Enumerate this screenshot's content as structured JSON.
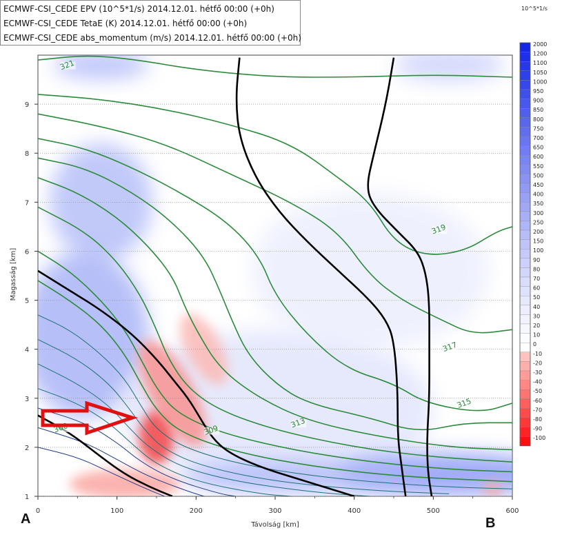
{
  "header": {
    "legend": [
      "ECMWF-CSI_CEDE EPV (10^5*1/s) 2014.12.01. hétfő 00:00 (+0h)",
      "ECMWF-CSI_CEDE TetaE (K) 2014.12.01. hétfő 00:00 (+0h)",
      "ECMWF-CSI_CEDE abs_momentum (m/s) 2014.12.01. hétfő 00:00 (+0h)"
    ],
    "unit": "10^5*1/s"
  },
  "corners": {
    "left": "A",
    "right": "B"
  },
  "colors": {
    "theta_e": "#2a8a3a",
    "momentum": "#000000",
    "arrow": "#e01010",
    "positive": "#3a55e8",
    "negative": "#f03020"
  },
  "chart_data": {
    "type": "heatmap",
    "xlabel": "Távolság [km]",
    "ylabel": "Magasság [km]",
    "xlim": [
      0,
      600
    ],
    "ylim": [
      1,
      10
    ],
    "xticks": [
      "0",
      "100",
      "200",
      "300",
      "400",
      "500",
      "600"
    ],
    "yticks": [
      "1",
      "2",
      "3",
      "4",
      "5",
      "6",
      "7",
      "8",
      "9"
    ],
    "grid": true,
    "colorbar": {
      "labels": [
        "2000",
        "1200",
        "1100",
        "1050",
        "1000",
        "950",
        "900",
        "850",
        "800",
        "750",
        "700",
        "650",
        "600",
        "550",
        "500",
        "450",
        "400",
        "350",
        "300",
        "250",
        "200",
        "150",
        "100",
        "90",
        "80",
        "70",
        "60",
        "50",
        "40",
        "30",
        "20",
        "10",
        "0",
        "-10",
        "-20",
        "-30",
        "-40",
        "-50",
        "-60",
        "-70",
        "-80",
        "-90",
        "-100"
      ]
    },
    "theta_e_labels": [
      {
        "text": "321",
        "x": 38,
        "y": 9.75
      },
      {
        "text": "319",
        "x": 508,
        "y": 6.4
      },
      {
        "text": "317",
        "x": 522,
        "y": 4.0
      },
      {
        "text": "315",
        "x": 540,
        "y": 2.85
      },
      {
        "text": "313",
        "x": 330,
        "y": 2.45
      },
      {
        "text": "309",
        "x": 220,
        "y": 2.3
      },
      {
        "text": "300",
        "x": 30,
        "y": 2.35
      }
    ],
    "theta_e_contours": [
      [
        [
          0,
          9.9
        ],
        [
          60,
          10
        ],
        [
          120,
          9.92
        ],
        [
          200,
          9.7
        ],
        [
          300,
          9.55
        ],
        [
          400,
          9.55
        ],
        [
          500,
          9.6
        ],
        [
          600,
          9.55
        ]
      ],
      [
        [
          0,
          9.2
        ],
        [
          80,
          9.1
        ],
        [
          160,
          8.9
        ],
        [
          240,
          8.6
        ],
        [
          320,
          8.2
        ],
        [
          380,
          7.5
        ],
        [
          420,
          7.0
        ],
        [
          450,
          6.2
        ],
        [
          490,
          5.9
        ],
        [
          540,
          6.0
        ],
        [
          580,
          6.4
        ],
        [
          600,
          6.5
        ]
      ],
      [
        [
          0,
          8.8
        ],
        [
          80,
          8.55
        ],
        [
          160,
          8.2
        ],
        [
          240,
          7.6
        ],
        [
          320,
          7.0
        ],
        [
          380,
          6.4
        ],
        [
          420,
          5.5
        ],
        [
          460,
          5.0
        ],
        [
          510,
          4.6
        ],
        [
          550,
          4.3
        ],
        [
          600,
          4.4
        ]
      ],
      [
        [
          0,
          8.3
        ],
        [
          60,
          8.1
        ],
        [
          120,
          7.7
        ],
        [
          180,
          7.2
        ],
        [
          240,
          6.6
        ],
        [
          280,
          5.9
        ],
        [
          300,
          5.1
        ],
        [
          340,
          4.3
        ],
        [
          390,
          3.6
        ],
        [
          450,
          3.3
        ],
        [
          490,
          2.9
        ],
        [
          560,
          2.7
        ],
        [
          600,
          2.9
        ]
      ],
      [
        [
          0,
          7.9
        ],
        [
          60,
          7.7
        ],
        [
          120,
          7.2
        ],
        [
          170,
          6.6
        ],
        [
          210,
          5.9
        ],
        [
          230,
          5.2
        ],
        [
          245,
          4.6
        ],
        [
          265,
          3.9
        ],
        [
          300,
          3.3
        ],
        [
          340,
          2.9
        ],
        [
          420,
          2.6
        ],
        [
          480,
          2.3
        ],
        [
          540,
          2.5
        ],
        [
          600,
          2.5
        ]
      ],
      [
        [
          0,
          7.5
        ],
        [
          50,
          7.2
        ],
        [
          100,
          6.7
        ],
        [
          140,
          6.1
        ],
        [
          170,
          5.5
        ],
        [
          185,
          4.9
        ],
        [
          200,
          4.4
        ],
        [
          230,
          3.6
        ],
        [
          280,
          3.0
        ],
        [
          340,
          2.55
        ],
        [
          420,
          2.25
        ],
        [
          520,
          2.0
        ],
        [
          600,
          1.95
        ]
      ],
      [
        [
          0,
          6.9
        ],
        [
          60,
          6.4
        ],
        [
          100,
          5.8
        ],
        [
          130,
          5.1
        ],
        [
          150,
          4.4
        ],
        [
          165,
          3.8
        ],
        [
          190,
          3.2
        ],
        [
          230,
          2.75
        ],
        [
          300,
          2.35
        ],
        [
          400,
          2.0
        ],
        [
          500,
          1.8
        ],
        [
          600,
          1.7
        ]
      ],
      [
        [
          0,
          6.0
        ],
        [
          40,
          5.6
        ],
        [
          80,
          5.0
        ],
        [
          110,
          4.4
        ],
        [
          130,
          3.8
        ],
        [
          150,
          3.2
        ],
        [
          175,
          2.7
        ],
        [
          230,
          2.3
        ],
        [
          320,
          1.95
        ],
        [
          420,
          1.7
        ],
        [
          520,
          1.55
        ],
        [
          600,
          1.5
        ]
      ],
      [
        [
          0,
          5.4
        ],
        [
          40,
          5.0
        ],
        [
          80,
          4.5
        ],
        [
          110,
          3.9
        ],
        [
          130,
          3.3
        ],
        [
          150,
          2.75
        ],
        [
          180,
          2.3
        ],
        [
          250,
          1.9
        ],
        [
          350,
          1.6
        ],
        [
          460,
          1.4
        ],
        [
          600,
          1.3
        ]
      ],
      [
        [
          0,
          4.7
        ],
        [
          40,
          4.4
        ],
        [
          80,
          3.9
        ],
        [
          110,
          3.4
        ],
        [
          130,
          2.85
        ],
        [
          150,
          2.35
        ],
        [
          190,
          1.95
        ],
        [
          270,
          1.6
        ],
        [
          380,
          1.35
        ],
        [
          500,
          1.2
        ],
        [
          600,
          1.15
        ]
      ],
      [
        [
          0,
          4.2
        ],
        [
          50,
          3.8
        ],
        [
          90,
          3.3
        ],
        [
          115,
          2.8
        ],
        [
          135,
          2.35
        ],
        [
          160,
          1.95
        ],
        [
          210,
          1.6
        ],
        [
          300,
          1.3
        ],
        [
          420,
          1.12
        ],
        [
          520,
          1.05
        ]
      ],
      [
        [
          0,
          3.7
        ],
        [
          50,
          3.3
        ],
        [
          90,
          2.85
        ],
        [
          115,
          2.4
        ],
        [
          140,
          2.0
        ],
        [
          180,
          1.6
        ],
        [
          250,
          1.3
        ],
        [
          350,
          1.08
        ],
        [
          420,
          1.0
        ]
      ],
      [
        [
          0,
          3.2
        ],
        [
          50,
          2.9
        ],
        [
          90,
          2.5
        ],
        [
          120,
          2.05
        ],
        [
          150,
          1.65
        ],
        [
          200,
          1.3
        ],
        [
          280,
          1.05
        ],
        [
          320,
          1.0
        ]
      ],
      [
        [
          0,
          2.8
        ],
        [
          60,
          2.5
        ],
        [
          100,
          2.1
        ],
        [
          130,
          1.7
        ],
        [
          170,
          1.35
        ],
        [
          230,
          1.05
        ],
        [
          250,
          1.0
        ]
      ],
      [
        [
          0,
          2.4
        ],
        [
          60,
          2.1
        ],
        [
          100,
          1.75
        ],
        [
          140,
          1.4
        ],
        [
          190,
          1.1
        ],
        [
          210,
          1.0
        ]
      ],
      [
        [
          0,
          2.0
        ],
        [
          50,
          1.8
        ],
        [
          90,
          1.5
        ],
        [
          130,
          1.2
        ],
        [
          160,
          1.0
        ]
      ]
    ],
    "momentum_contours": [
      [
        [
          0,
          5.6
        ],
        [
          40,
          5.2
        ],
        [
          80,
          4.8
        ],
        [
          120,
          4.3
        ],
        [
          150,
          3.8
        ],
        [
          170,
          3.4
        ],
        [
          190,
          3.0
        ],
        [
          205,
          2.6
        ],
        [
          220,
          2.2
        ],
        [
          240,
          1.9
        ],
        [
          280,
          1.6
        ],
        [
          330,
          1.35
        ],
        [
          380,
          1.1
        ],
        [
          400,
          1.0
        ]
      ],
      [
        [
          0,
          2.65
        ],
        [
          40,
          2.3
        ],
        [
          80,
          1.8
        ],
        [
          110,
          1.45
        ],
        [
          140,
          1.2
        ],
        [
          170,
          1.0
        ]
      ],
      [
        [
          255,
          9.95
        ],
        [
          250,
          9.1
        ],
        [
          255,
          8.3
        ],
        [
          275,
          7.5
        ],
        [
          305,
          6.8
        ],
        [
          340,
          6.2
        ],
        [
          380,
          5.6
        ],
        [
          420,
          5.0
        ],
        [
          440,
          4.6
        ],
        [
          450,
          4.2
        ],
        [
          455,
          3.2
        ],
        [
          455,
          2.2
        ],
        [
          460,
          1.6
        ],
        [
          465,
          1.0
        ]
      ],
      [
        [
          450,
          9.95
        ],
        [
          440,
          9.0
        ],
        [
          425,
          8.0
        ],
        [
          415,
          7.3
        ],
        [
          425,
          6.9
        ],
        [
          455,
          6.4
        ],
        [
          480,
          6.0
        ],
        [
          490,
          5.6
        ],
        [
          495,
          5.0
        ],
        [
          495,
          4.0
        ],
        [
          495,
          3.0
        ],
        [
          492,
          2.2
        ],
        [
          493,
          1.5
        ],
        [
          498,
          1.0
        ]
      ]
    ],
    "epv_blobs": [
      {
        "x": 80,
        "y": 9.8,
        "rx": 60,
        "ry": 0.3,
        "v": 300
      },
      {
        "x": 520,
        "y": 9.8,
        "rx": 70,
        "ry": 0.35,
        "v": 200
      },
      {
        "x": 80,
        "y": 7.0,
        "rx": 65,
        "ry": 1.2,
        "v": 300
      },
      {
        "x": 60,
        "y": 4.3,
        "rx": 80,
        "ry": 1.7,
        "v": 350
      },
      {
        "x": 300,
        "y": 2.8,
        "rx": 200,
        "ry": 1.6,
        "v": 120
      },
      {
        "x": 420,
        "y": 5.6,
        "rx": 150,
        "ry": 1.6,
        "v": 80
      },
      {
        "x": 520,
        "y": 1.45,
        "rx": 140,
        "ry": 0.45,
        "v": 450
      },
      {
        "x": 320,
        "y": 1.4,
        "rx": 140,
        "ry": 0.35,
        "v": 300
      },
      {
        "x": 150,
        "y": 2.2,
        "rx": 22,
        "ry": 0.55,
        "v": -80
      },
      {
        "x": 170,
        "y": 3.1,
        "rx": 28,
        "ry": 1.2,
        "v": -40
      },
      {
        "x": 210,
        "y": 4.0,
        "rx": 22,
        "ry": 0.8,
        "v": -20
      },
      {
        "x": 110,
        "y": 1.25,
        "rx": 70,
        "ry": 0.3,
        "v": -30
      },
      {
        "x": 575,
        "y": 1.15,
        "rx": 12,
        "ry": 0.15,
        "v": -30
      }
    ]
  }
}
